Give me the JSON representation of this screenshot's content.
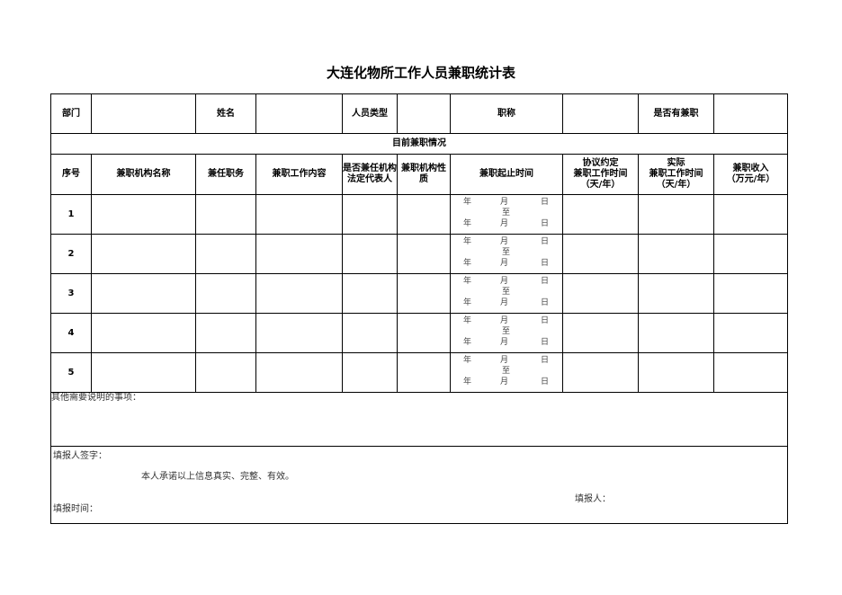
{
  "title": "大连化物所工作人员兼职统计表",
  "header": {
    "dept": "部门",
    "name": "姓名",
    "staff_type": "人员类型",
    "job_title": "职称",
    "has_parttime": "是否有兼职"
  },
  "section": "目前兼职情况",
  "columns": [
    "序号",
    "兼职机构名称",
    "兼任职务",
    "兼职工作内容",
    "是否兼任机构法定代表人",
    "兼职机构性质",
    "兼职起止时间",
    "协议约定\n兼职工作时间\n（天/年）",
    "实际\n兼职工作时间\n（天/年）",
    "兼职收入\n（万元/年）"
  ],
  "date": {
    "year": "年",
    "month": "月",
    "day": "日",
    "to": "至"
  },
  "rows": [
    "1",
    "2",
    "3",
    "4",
    "5"
  ],
  "other_notes": "其他需要说明的事项：",
  "signature": {
    "label": "填报人签字：",
    "pledge": "本人承诺以上信息真实、完整、有效。",
    "reporter": "填报人：",
    "date": "填报时间："
  }
}
